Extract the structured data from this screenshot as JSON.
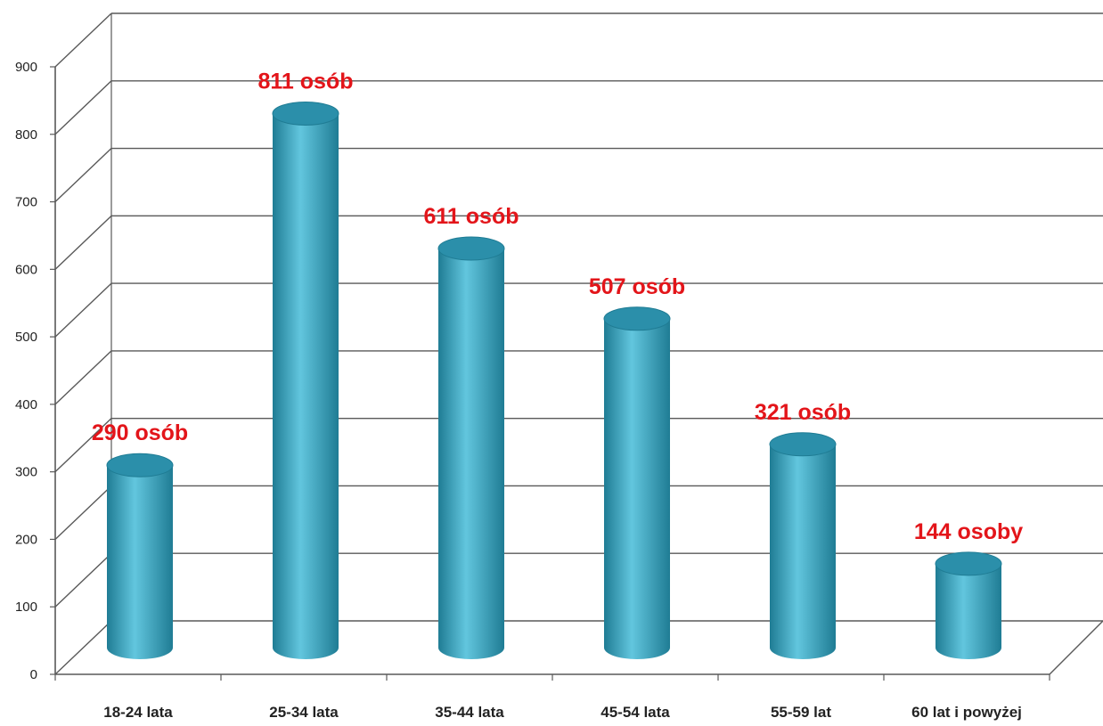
{
  "chart_data": {
    "type": "bar",
    "bar_shape": "3d-cylinder",
    "categories": [
      "18-24 lata",
      "25-34 lata",
      "35-44 lata",
      "45-54 lata",
      "55-59 lat",
      "60 lat i powyżej"
    ],
    "values": [
      290,
      811,
      611,
      507,
      321,
      144
    ],
    "data_labels": [
      "290 osób",
      "811 osób",
      "611 osób",
      "507 osób",
      "321 osób",
      "144 osoby"
    ],
    "yticks": [
      "0",
      "100",
      "200",
      "300",
      "400",
      "500",
      "600",
      "700",
      "800",
      "900"
    ],
    "ylim": [
      0,
      900
    ],
    "grid": true,
    "legend": "none",
    "colors": {
      "bar": "#3aaac8",
      "bar_highlight": "#62c6de",
      "bar_shadow": "#1f7c94",
      "bar_top": "#2b8faa",
      "data_label": "#e3151a",
      "grid": "#595959"
    }
  }
}
